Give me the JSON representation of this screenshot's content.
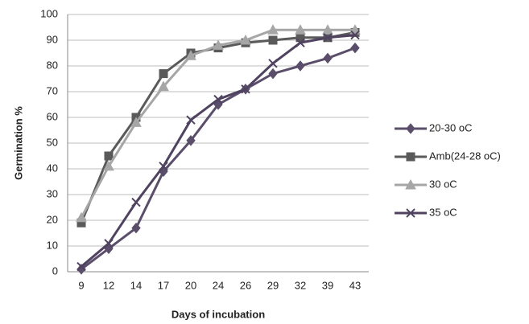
{
  "chart_data": {
    "type": "line",
    "xlabel": "Days of incubation",
    "ylabel": "Germination %",
    "categories": [
      "9",
      "12",
      "14",
      "17",
      "20",
      "24",
      "26",
      "29",
      "32",
      "39",
      "43"
    ],
    "series": [
      {
        "name": "20-30 oC",
        "color": "#5b4e6b",
        "marker": "diamond",
        "values": [
          1,
          9,
          17,
          39,
          51,
          65,
          71,
          77,
          80,
          83,
          87
        ]
      },
      {
        "name": "Amb(24-28 oC)",
        "color": "#5a5a5a",
        "marker": "square",
        "values": [
          19,
          45,
          60,
          77,
          85,
          87,
          89,
          90,
          91,
          91,
          93
        ]
      },
      {
        "name": "30 oC",
        "color": "#a6a6a6",
        "marker": "triangle",
        "values": [
          21,
          41,
          58,
          72,
          84,
          88,
          90,
          94,
          94,
          94,
          94
        ]
      },
      {
        "name": "35 oC",
        "color": "#4f4360",
        "marker": "x",
        "values": [
          2,
          11,
          27,
          41,
          59,
          67,
          71,
          81,
          89,
          91,
          92
        ]
      }
    ],
    "ylim": [
      0,
      100
    ],
    "yticks": [
      0,
      10,
      20,
      30,
      40,
      50,
      60,
      70,
      80,
      90,
      100
    ],
    "grid": true,
    "legend": "right"
  }
}
